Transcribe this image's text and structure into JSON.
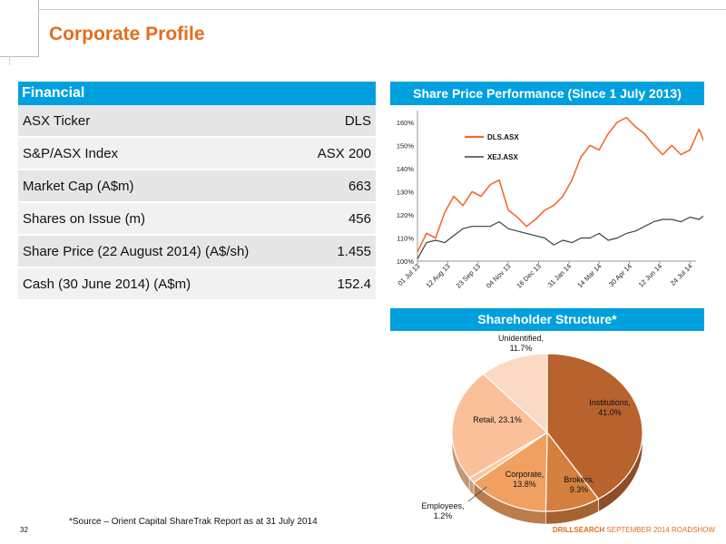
{
  "slide": {
    "title": "Corporate Profile",
    "page_number": "32",
    "source_note": "*Source – Orient Capital ShareTrak Report  as at 31 July 2014",
    "footer_brand": "DRILLSEARCH",
    "footer_text": " SEPTEMBER 2014 ROADSHOW"
  },
  "financial": {
    "header": "Financial",
    "rows": [
      {
        "label": "ASX Ticker",
        "value": "DLS"
      },
      {
        "label": "S&P/ASX Index",
        "value": "ASX 200"
      },
      {
        "label": "Market Cap (A$m)",
        "value": "663"
      },
      {
        "label": "Shares on Issue (m)",
        "value": "456"
      },
      {
        "label": "Share Price (22 August 2014) (A$/sh)",
        "value": "1.455"
      },
      {
        "label": "Cash (30 June 2014) (A$m)",
        "value": "152.4"
      }
    ]
  },
  "share_price": {
    "header": "Share Price Performance (Since 1 July 2013)"
  },
  "shareholder": {
    "header": "Shareholder Structure*"
  },
  "chart_data": [
    {
      "type": "line",
      "title": "Share Price Performance (Since 1 July 2013)",
      "x_tick_labels": [
        "01 Jul 13",
        "12 Aug 13",
        "23 Sep 13",
        "04 Nov 13",
        "16 Dec 13",
        "31 Jan 14",
        "14 Mar 14",
        "30 Apr 14",
        "12 Jun 14",
        "24 Jul 14"
      ],
      "y_tick_labels": [
        "100%",
        "110%",
        "120%",
        "130%",
        "140%",
        "150%",
        "160%"
      ],
      "ylim": [
        100,
        165
      ],
      "colors": {
        "DLS.ASX": "#f26a2e",
        "XEJ.ASX": "#404040"
      },
      "series": [
        {
          "name": "DLS.ASX",
          "points": [
            [
              0,
              104
            ],
            [
              0.3,
              112
            ],
            [
              0.6,
              110
            ],
            [
              0.9,
              121
            ],
            [
              1.2,
              128
            ],
            [
              1.5,
              124
            ],
            [
              1.8,
              130
            ],
            [
              2.1,
              128
            ],
            [
              2.4,
              133
            ],
            [
              2.7,
              135
            ],
            [
              3,
              122
            ],
            [
              3.3,
              119
            ],
            [
              3.6,
              115
            ],
            [
              3.9,
              118
            ],
            [
              4.2,
              122
            ],
            [
              4.5,
              124
            ],
            [
              4.8,
              128
            ],
            [
              5.1,
              135
            ],
            [
              5.4,
              145
            ],
            [
              5.7,
              150
            ],
            [
              6,
              148
            ],
            [
              6.3,
              155
            ],
            [
              6.6,
              160
            ],
            [
              6.9,
              162
            ],
            [
              7.2,
              158
            ],
            [
              7.5,
              155
            ],
            [
              7.8,
              150
            ],
            [
              8.1,
              146
            ],
            [
              8.4,
              150
            ],
            [
              8.7,
              146
            ],
            [
              9,
              148
            ],
            [
              9.3,
              157
            ],
            [
              9.6,
              147
            ],
            [
              9.85,
              138
            ]
          ]
        },
        {
          "name": "XEJ.ASX",
          "points": [
            [
              0,
              101
            ],
            [
              0.3,
              108
            ],
            [
              0.6,
              109
            ],
            [
              0.9,
              108
            ],
            [
              1.2,
              111
            ],
            [
              1.5,
              114
            ],
            [
              1.8,
              115
            ],
            [
              2.1,
              115
            ],
            [
              2.4,
              115
            ],
            [
              2.7,
              117
            ],
            [
              3,
              114
            ],
            [
              3.3,
              113
            ],
            [
              3.6,
              112
            ],
            [
              3.9,
              111
            ],
            [
              4.2,
              110
            ],
            [
              4.5,
              107
            ],
            [
              4.8,
              109
            ],
            [
              5.1,
              108
            ],
            [
              5.4,
              110
            ],
            [
              5.7,
              110
            ],
            [
              6,
              112
            ],
            [
              6.3,
              109
            ],
            [
              6.6,
              110
            ],
            [
              6.9,
              112
            ],
            [
              7.2,
              113
            ],
            [
              7.5,
              115
            ],
            [
              7.8,
              117
            ],
            [
              8.1,
              118
            ],
            [
              8.4,
              118
            ],
            [
              8.7,
              117
            ],
            [
              9,
              119
            ],
            [
              9.3,
              118
            ],
            [
              9.6,
              121
            ],
            [
              9.85,
              122
            ]
          ]
        }
      ]
    },
    {
      "type": "pie",
      "title": "Shareholder Structure*",
      "slices": [
        {
          "label": "Institutions,",
          "pct_label": "41.0%",
          "value": 41.0,
          "color": "#b8622e"
        },
        {
          "label": "Brokers,",
          "pct_label": "9.3%",
          "value": 9.3,
          "color": "#d47f3e"
        },
        {
          "label": "Corporate,",
          "pct_label": "13.8%",
          "value": 13.8,
          "color": "#f0a060"
        },
        {
          "label": "Employees,",
          "pct_label": "1.2%",
          "value": 1.2,
          "color": "#f8c8a0"
        },
        {
          "label": "Retail, 23.1%",
          "pct_label": "",
          "value": 23.1,
          "color": "#f9c09a"
        },
        {
          "label": "Unidentified,",
          "pct_label": "11.7%",
          "value": 11.7,
          "color": "#fcd9c4"
        }
      ]
    }
  ]
}
